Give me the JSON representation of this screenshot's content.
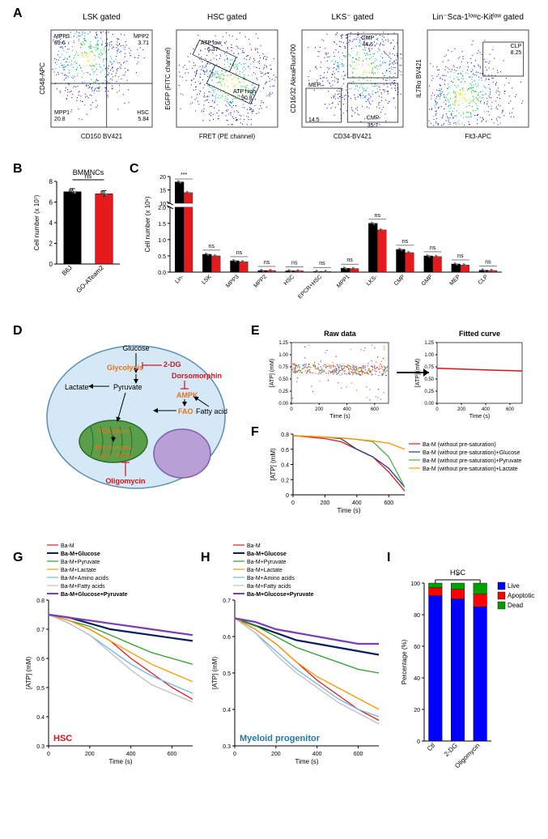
{
  "panelA": {
    "plots": [
      {
        "title": "LSK gated",
        "ylabel": "CD48-APC",
        "xlabel": "CD150 BV421",
        "quadrants": [
          {
            "name": "MPP3",
            "val": "69.6",
            "pos": "tl"
          },
          {
            "name": "MPP2",
            "val": "3.71",
            "pos": "tr"
          },
          {
            "name": "MPP1",
            "val": "20.8",
            "pos": "bl"
          },
          {
            "name": "HSC",
            "val": "5.84",
            "pos": "br"
          }
        ]
      },
      {
        "title": "HSC gated",
        "ylabel": "EGFP (FITC channel)",
        "xlabel": "FRET (PE channel)",
        "regions": [
          {
            "name": "ATP low",
            "val": "6.37"
          },
          {
            "name": "ATP high",
            "val": "90.8"
          }
        ]
      },
      {
        "title": "LKS⁻ gated",
        "ylabel": "CD16/32 AlexaFluor700",
        "xlabel": "CD34-BV421",
        "regions": [
          {
            "name": "GMP",
            "val": "44.6"
          },
          {
            "name": "MEP",
            "val": "14.5"
          },
          {
            "name": "CMP",
            "val": "35.7"
          }
        ]
      },
      {
        "title": "Lin⁻Sca-1ˡᵒʷc-Kitˡᵒʷ gated",
        "ylabel": "IL7Rα BV421",
        "xlabel": "Flt3-APC",
        "regions": [
          {
            "name": "CLP",
            "val": "8.25"
          }
        ]
      }
    ]
  },
  "panelB": {
    "title": "BMMNCs",
    "ylabel": "Cell number (x 10⁷)",
    "categories": [
      "B6J",
      "GO-ATeam2"
    ],
    "values": [
      7.0,
      6.8
    ],
    "errors": [
      0.3,
      0.3
    ],
    "colors": [
      "#000000",
      "#e41a1c"
    ],
    "ylim": [
      0,
      8
    ],
    "yticks": [
      0,
      2,
      4,
      6,
      8
    ],
    "sig": "ns"
  },
  "panelC": {
    "ylabel": "Cell number (x 10⁶)",
    "categories": [
      "Lin-",
      "LSK",
      "MPP3",
      "MPP2",
      "HSC",
      "EPCR+HSC",
      "MPP1",
      "LKS-",
      "CMP",
      "GMP",
      "MEP",
      "CLP"
    ],
    "series": [
      {
        "name": "B6J",
        "color": "#000000",
        "values": [
          18,
          0.55,
          0.35,
          0.05,
          0.04,
          0.02,
          0.12,
          1.5,
          0.7,
          0.5,
          0.25,
          0.06
        ]
      },
      {
        "name": "GO-ATeam2",
        "color": "#e41a1c",
        "values": [
          14,
          0.5,
          0.32,
          0.05,
          0.04,
          0.02,
          0.11,
          1.3,
          0.6,
          0.48,
          0.22,
          0.05
        ]
      }
    ],
    "sig": [
      "***",
      "ns",
      "ns",
      "ns",
      "ns",
      "ns",
      "ns",
      "ns",
      "ns",
      "ns",
      "ns",
      "ns"
    ],
    "break_low": [
      0,
      2.0
    ],
    "break_high": [
      10,
      20
    ],
    "yticks_low": [
      0,
      0.5,
      1.0,
      1.5,
      2.0
    ],
    "yticks_high": [
      10,
      15,
      20
    ]
  },
  "panelD": {
    "labels": {
      "glucose": "Glucose",
      "glycolysis": "Glycolysis",
      "dg": "2-DG",
      "lactate": "Lactate",
      "pyruvate": "Pyruvate",
      "dorsomorphin": "Dorsomorphin",
      "ampk": "AMPK",
      "fao": "FAO",
      "fattyacid": "Fatty acid",
      "tca": "TCA cycle",
      "etc": "ETC Complex",
      "etcnums": "(I) (II) (III) (IV) (V)",
      "oligomycin": "Oligomycin"
    },
    "colors": {
      "orange": "#e8731e",
      "red": "#d4141c",
      "mito": "#5a9e4a",
      "nucleus": "#b89fd6",
      "cell": "#d5e8f5"
    }
  },
  "panelE": {
    "titles": [
      "Raw data",
      "Fitted curve"
    ],
    "ylabel": "[ATP] (mM)",
    "xlabel": "Time (s)",
    "ylim": [
      0,
      1.25
    ],
    "yticks": [
      0,
      0.25,
      0.5,
      0.75,
      1.0,
      1.25
    ],
    "xlim": [
      0,
      700
    ],
    "xticks": [
      0,
      200,
      400,
      600
    ],
    "scatter_colors": [
      "#e41a1c",
      "#377eb8",
      "#4daf4a",
      "#984ea3",
      "#ff7f00"
    ],
    "fit_color": "#d4141c"
  },
  "panelF": {
    "ylabel": "[ATP] (mM)",
    "xlabel": "Time (s)",
    "ylim": [
      0,
      0.8
    ],
    "yticks": [
      0,
      0.2,
      0.4,
      0.6,
      0.8
    ],
    "xlim": [
      0,
      700
    ],
    "xticks": [
      0,
      200,
      400,
      600
    ],
    "series": [
      {
        "name": "Ba-M (without pre-saturation)",
        "color": "#e41a1c",
        "y": [
          0.78,
          0.76,
          0.74,
          0.7,
          0.6,
          0.5,
          0.3,
          0.05
        ]
      },
      {
        "name": "Ba-M (without pre-saturation)+Glucose",
        "color": "#1f3b8c",
        "y": [
          0.78,
          0.77,
          0.76,
          0.74,
          0.6,
          0.5,
          0.35,
          0.1
        ]
      },
      {
        "name": "Ba-M (without pre-saturation)+Pyruvate",
        "color": "#4daf4a",
        "y": [
          0.78,
          0.77,
          0.76,
          0.75,
          0.73,
          0.7,
          0.5,
          0.1
        ]
      },
      {
        "name": "Ba-M (without pre-saturation)+Lactate",
        "color": "#ff9900",
        "y": [
          0.78,
          0.77,
          0.76,
          0.75,
          0.73,
          0.71,
          0.68,
          0.6
        ]
      }
    ],
    "x": [
      0,
      100,
      200,
      300,
      400,
      500,
      600,
      700
    ]
  },
  "panelG": {
    "title": "HSC",
    "title_color": "#d4141c",
    "ylabel": "[ATP] (mM)",
    "xlabel": "Time (s)",
    "ylim": [
      0.3,
      0.8
    ],
    "yticks": [
      0.3,
      0.4,
      0.5,
      0.6,
      0.7,
      0.8
    ],
    "xlim": [
      0,
      700
    ],
    "xticks": [
      0,
      200,
      400,
      600
    ],
    "series": [
      {
        "name": "Ba-M",
        "color": "#e41a1c",
        "bold": false,
        "y": [
          0.75,
          0.73,
          0.7,
          0.66,
          0.6,
          0.55,
          0.5,
          0.46
        ]
      },
      {
        "name": "Ba-M+Glucose",
        "color": "#0b1d5c",
        "bold": true,
        "y": [
          0.75,
          0.74,
          0.72,
          0.7,
          0.69,
          0.68,
          0.67,
          0.66
        ]
      },
      {
        "name": "Ba-M+Pyruvate",
        "color": "#2ca02c",
        "bold": false,
        "y": [
          0.75,
          0.73,
          0.71,
          0.68,
          0.65,
          0.62,
          0.6,
          0.58
        ]
      },
      {
        "name": "Ba-M+Lactate",
        "color": "#ff9900",
        "bold": false,
        "y": [
          0.75,
          0.73,
          0.7,
          0.66,
          0.62,
          0.58,
          0.55,
          0.52
        ]
      },
      {
        "name": "Ba-M+Amino acids",
        "color": "#6fb7e8",
        "bold": false,
        "y": [
          0.75,
          0.72,
          0.68,
          0.63,
          0.58,
          0.54,
          0.51,
          0.48
        ]
      },
      {
        "name": "Ba-M+Fatty acids",
        "color": "#bfbfbf",
        "bold": false,
        "y": [
          0.75,
          0.72,
          0.68,
          0.62,
          0.56,
          0.51,
          0.48,
          0.45
        ]
      },
      {
        "name": "Ba-M+Glucose+Pyruvate",
        "color": "#7b3fb5",
        "bold": true,
        "y": [
          0.75,
          0.74,
          0.73,
          0.72,
          0.71,
          0.7,
          0.69,
          0.68
        ]
      }
    ],
    "x": [
      0,
      100,
      200,
      300,
      400,
      500,
      600,
      700
    ]
  },
  "panelH": {
    "title": "Myeloid progenitor",
    "title_color": "#1f78b4",
    "ylabel": "[ATP] (mM)",
    "xlabel": "Time (s)",
    "ylim": [
      0.3,
      0.7
    ],
    "yticks": [
      0.3,
      0.4,
      0.5,
      0.6,
      0.7
    ],
    "xlim": [
      0,
      700
    ],
    "xticks": [
      0,
      200,
      400,
      600
    ],
    "series": [
      {
        "name": "Ba-M",
        "color": "#e41a1c",
        "bold": false,
        "y": [
          0.65,
          0.62,
          0.58,
          0.53,
          0.48,
          0.44,
          0.4,
          0.37
        ]
      },
      {
        "name": "Ba-M+Glucose",
        "color": "#0b1d5c",
        "bold": true,
        "y": [
          0.65,
          0.63,
          0.61,
          0.59,
          0.58,
          0.57,
          0.56,
          0.55
        ]
      },
      {
        "name": "Ba-M+Pyruvate",
        "color": "#2ca02c",
        "bold": false,
        "y": [
          0.65,
          0.63,
          0.6,
          0.57,
          0.55,
          0.53,
          0.51,
          0.5
        ]
      },
      {
        "name": "Ba-M+Lactate",
        "color": "#ff9900",
        "bold": false,
        "y": [
          0.65,
          0.62,
          0.58,
          0.53,
          0.49,
          0.46,
          0.43,
          0.4
        ]
      },
      {
        "name": "Ba-M+Amino acids",
        "color": "#6fb7e8",
        "bold": false,
        "y": [
          0.65,
          0.61,
          0.56,
          0.51,
          0.47,
          0.43,
          0.4,
          0.38
        ]
      },
      {
        "name": "Ba-M+Fatty acids",
        "color": "#bfbfbf",
        "bold": false,
        "y": [
          0.65,
          0.61,
          0.55,
          0.5,
          0.46,
          0.42,
          0.39,
          0.36
        ]
      },
      {
        "name": "Ba-M+Glucose+Pyruvate",
        "color": "#7b3fb5",
        "bold": true,
        "y": [
          0.65,
          0.64,
          0.62,
          0.61,
          0.6,
          0.59,
          0.58,
          0.58
        ]
      }
    ],
    "x": [
      0,
      100,
      200,
      300,
      400,
      500,
      600,
      700
    ]
  },
  "panelI": {
    "title": "HSC",
    "ylabel": "Percentage (%)",
    "categories": [
      "Ctl",
      "2-DG",
      "Oligomycin"
    ],
    "series": [
      {
        "name": "Live",
        "color": "#0000ff",
        "values": [
          92,
          90,
          85
        ]
      },
      {
        "name": "Apoptotic",
        "color": "#ff0000",
        "values": [
          5,
          6,
          8
        ]
      },
      {
        "name": "Dead",
        "color": "#00a000",
        "values": [
          3,
          4,
          7
        ]
      }
    ],
    "ylim": [
      0,
      100
    ],
    "yticks": [
      0,
      20,
      40,
      60,
      80,
      100
    ],
    "sig": "*"
  }
}
